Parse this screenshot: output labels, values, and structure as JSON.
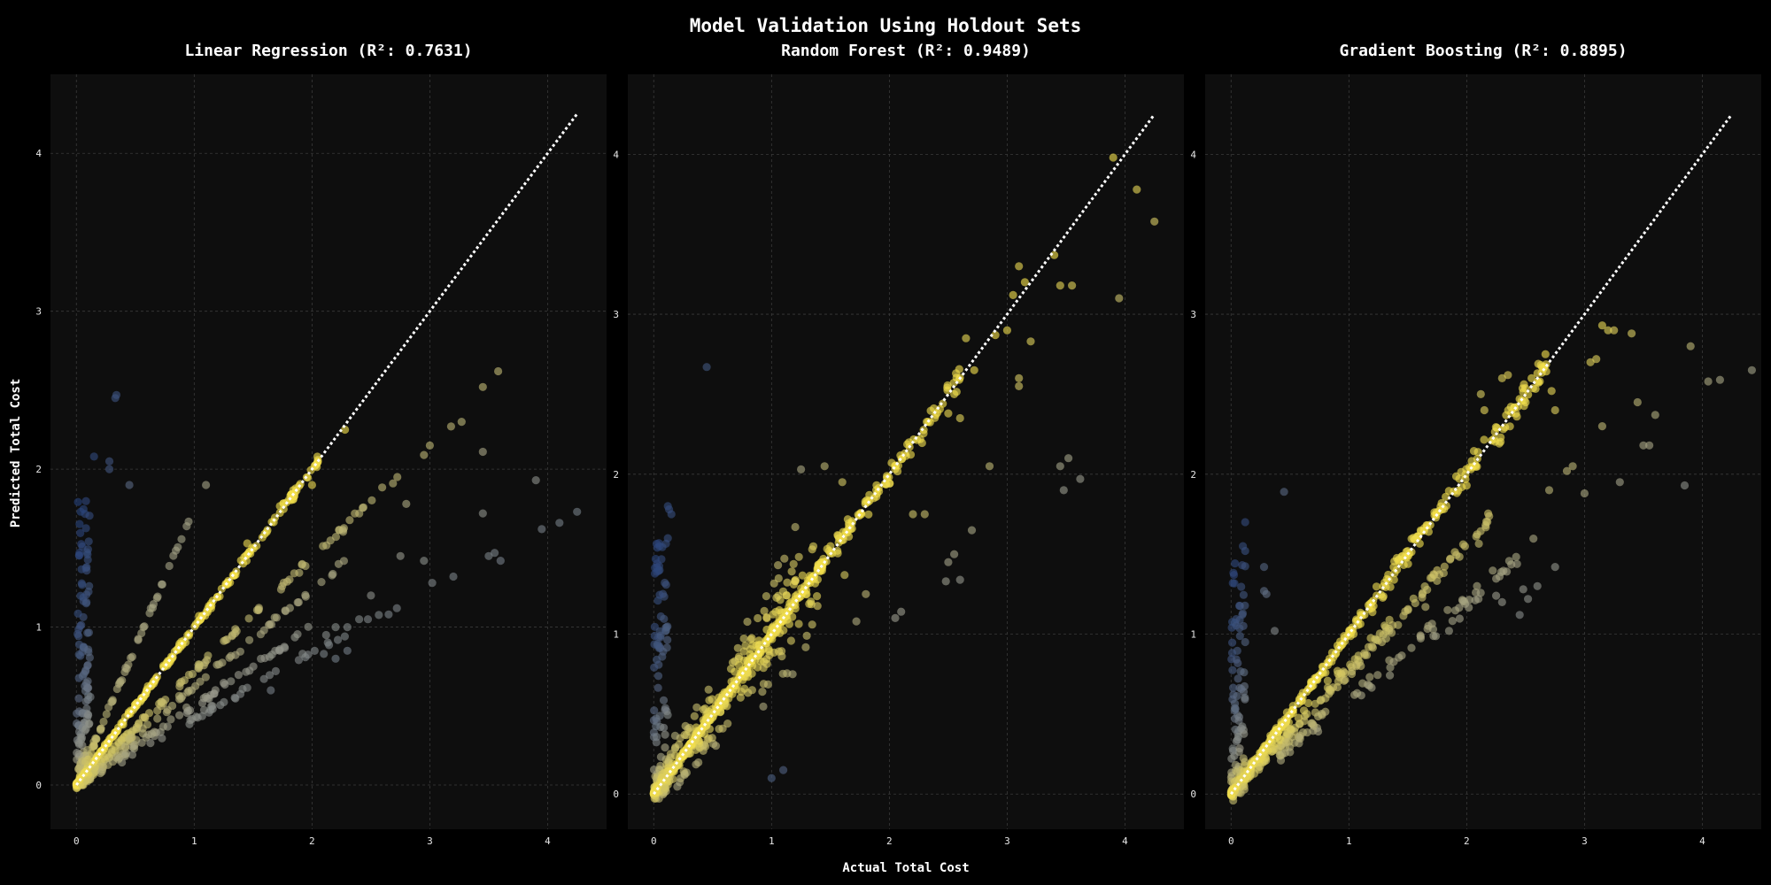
{
  "suptitle": "Model Validation Using Holdout Sets",
  "x_label": "Actual Total Cost",
  "y_label": "Predicted Total Cost",
  "colors": {
    "background": "#000000",
    "panel": "#0e0e0e",
    "high_accuracy": "#f5e14a",
    "mid": "#9a9a8a",
    "low_accuracy": "#1e3a78",
    "identity_line": "#ffffff"
  },
  "chart_data": [
    {
      "type": "scatter",
      "title": "Linear Regression (R²: 0.7631)",
      "model": "Linear Regression",
      "r2": 0.7631,
      "xlim": [
        -0.22,
        4.5
      ],
      "ylim": [
        -0.28,
        4.5
      ],
      "xticks": [
        0,
        1,
        2,
        3,
        4
      ],
      "yticks": [
        0,
        1,
        2,
        3,
        4
      ],
      "identity_line": [
        [
          0,
          0
        ],
        [
          4.25,
          4.25
        ]
      ],
      "clusters": [
        {
          "kind": "diagonal",
          "x_from": 0,
          "x_to": 2.05,
          "n": 240,
          "noise": 0.03
        },
        {
          "kind": "ray",
          "slope": 1.75,
          "x_from": 0.02,
          "x_to": 0.98,
          "n": 60,
          "noise": 0.02
        },
        {
          "kind": "ray",
          "slope": 0.72,
          "x_from": 0,
          "x_to": 2.75,
          "n": 110,
          "noise": 0.03
        },
        {
          "kind": "ray",
          "slope": 0.62,
          "x_from": 0,
          "x_to": 2.3,
          "n": 70,
          "noise": 0.03
        },
        {
          "kind": "ray",
          "slope": 0.5,
          "x_from": 0,
          "x_to": 2.0,
          "n": 70,
          "noise": 0.03
        },
        {
          "kind": "ray",
          "slope": 0.42,
          "x_from": 0,
          "x_to": 2.6,
          "n": 50,
          "noise": 0.03
        },
        {
          "kind": "vertical",
          "x_from": 0,
          "x_to": 0.12,
          "y_from": 0,
          "y_to": 1.85,
          "n": 140
        }
      ],
      "outliers": [
        [
          0.33,
          2.45
        ],
        [
          0.34,
          2.47
        ],
        [
          0.15,
          2.08
        ],
        [
          0.28,
          2.05
        ],
        [
          0.28,
          2.0
        ],
        [
          0.45,
          1.9
        ],
        [
          1.1,
          1.9
        ],
        [
          1.45,
          1.53
        ],
        [
          1.85,
          1.83
        ],
        [
          2.0,
          1.9
        ],
        [
          2.28,
          2.25
        ],
        [
          3.45,
          2.52
        ],
        [
          3.58,
          2.62
        ],
        [
          3.18,
          2.27
        ],
        [
          3.27,
          2.3
        ],
        [
          2.95,
          2.09
        ],
        [
          3.0,
          2.15
        ],
        [
          3.45,
          2.11
        ],
        [
          2.8,
          1.78
        ],
        [
          3.45,
          1.72
        ],
        [
          3.5,
          1.45
        ],
        [
          3.55,
          1.47
        ],
        [
          3.6,
          1.42
        ],
        [
          3.9,
          1.93
        ],
        [
          3.95,
          1.62
        ],
        [
          4.1,
          1.66
        ],
        [
          4.25,
          1.73
        ],
        [
          3.2,
          1.32
        ],
        [
          3.02,
          1.28
        ],
        [
          2.72,
          1.12
        ],
        [
          2.65,
          1.08
        ],
        [
          2.5,
          1.2
        ],
        [
          2.95,
          1.42
        ],
        [
          1.65,
          0.6
        ],
        [
          2.1,
          0.83
        ],
        [
          2.2,
          0.8
        ],
        [
          2.3,
          0.85
        ],
        [
          2.3,
          1.0
        ],
        [
          2.4,
          1.05
        ],
        [
          2.75,
          1.45
        ],
        [
          2.12,
          0.95
        ],
        [
          2.2,
          1.0
        ]
      ]
    },
    {
      "type": "scatter",
      "title": "Random Forest (R²: 0.9489)",
      "model": "Random Forest",
      "r2": 0.9489,
      "xlim": [
        -0.22,
        4.5
      ],
      "ylim": [
        -0.22,
        4.5
      ],
      "xticks": [
        0,
        1,
        2,
        3,
        4
      ],
      "yticks": [
        0,
        1,
        2,
        3,
        4
      ],
      "identity_line": [
        [
          0,
          0
        ],
        [
          4.25,
          4.25
        ]
      ],
      "clusters": [
        {
          "kind": "diagonal",
          "x_from": 0,
          "x_to": 2.6,
          "n": 380,
          "noise": 0.05
        },
        {
          "kind": "cloud",
          "x_from": 0,
          "x_to": 1.4,
          "n": 280,
          "spread": 0.28
        },
        {
          "kind": "vertical",
          "x_from": 0,
          "x_to": 0.12,
          "y_from": 0,
          "y_to": 1.6,
          "n": 90
        }
      ],
      "outliers": [
        [
          0.45,
          2.67
        ],
        [
          0.12,
          1.8
        ],
        [
          0.13,
          1.78
        ],
        [
          0.15,
          1.75
        ],
        [
          0.12,
          1.6
        ],
        [
          0.05,
          1.55
        ],
        [
          3.9,
          3.98
        ],
        [
          4.1,
          3.78
        ],
        [
          4.25,
          3.58
        ],
        [
          3.95,
          3.1
        ],
        [
          3.4,
          3.37
        ],
        [
          3.45,
          3.18
        ],
        [
          3.55,
          3.18
        ],
        [
          3.1,
          3.3
        ],
        [
          3.05,
          3.12
        ],
        [
          3.15,
          3.2
        ],
        [
          3.0,
          2.9
        ],
        [
          2.9,
          2.87
        ],
        [
          3.1,
          2.6
        ],
        [
          3.1,
          2.55
        ],
        [
          3.2,
          2.83
        ],
        [
          2.65,
          2.85
        ],
        [
          2.72,
          2.65
        ],
        [
          2.5,
          2.38
        ],
        [
          2.55,
          2.5
        ],
        [
          2.6,
          2.35
        ],
        [
          2.85,
          2.05
        ],
        [
          2.55,
          1.5
        ],
        [
          2.5,
          1.45
        ],
        [
          2.48,
          1.33
        ],
        [
          2.6,
          1.34
        ],
        [
          2.7,
          1.65
        ],
        [
          3.45,
          2.05
        ],
        [
          3.48,
          1.9
        ],
        [
          3.52,
          2.1
        ],
        [
          3.62,
          1.97
        ],
        [
          2.3,
          1.75
        ],
        [
          2.2,
          1.75
        ],
        [
          2.05,
          1.1
        ],
        [
          2.1,
          1.14
        ],
        [
          1.25,
          2.03
        ],
        [
          1.45,
          2.05
        ],
        [
          1.6,
          1.95
        ],
        [
          1.5,
          1.55
        ],
        [
          1.62,
          1.37
        ],
        [
          1.8,
          1.25
        ],
        [
          1.72,
          1.08
        ],
        [
          1.1,
          0.15
        ],
        [
          1.0,
          0.1
        ]
      ]
    },
    {
      "type": "scatter",
      "title": "Gradient Boosting (R²: 0.8895)",
      "model": "Gradient Boosting",
      "r2": 0.8895,
      "xlim": [
        -0.22,
        4.5
      ],
      "ylim": [
        -0.22,
        4.5
      ],
      "xticks": [
        0,
        1,
        2,
        3,
        4
      ],
      "yticks": [
        0,
        1,
        2,
        3,
        4
      ],
      "identity_line": [
        [
          0,
          0
        ],
        [
          4.25,
          4.25
        ]
      ],
      "clusters": [
        {
          "kind": "diagonal",
          "x_from": 0,
          "x_to": 2.7,
          "n": 330,
          "noise": 0.06
        },
        {
          "kind": "ray",
          "slope": 0.78,
          "x_from": 0,
          "x_to": 2.2,
          "n": 180,
          "noise": 0.07
        },
        {
          "kind": "ray",
          "slope": 0.6,
          "x_from": 0.4,
          "x_to": 2.6,
          "n": 80,
          "noise": 0.07
        },
        {
          "kind": "vertical",
          "x_from": 0,
          "x_to": 0.12,
          "y_from": 0,
          "y_to": 1.5,
          "n": 100
        }
      ],
      "outliers": [
        [
          0.45,
          1.89
        ],
        [
          0.12,
          1.7
        ],
        [
          0.1,
          1.55
        ],
        [
          0.12,
          1.52
        ],
        [
          0.28,
          1.42
        ],
        [
          0.37,
          1.02
        ],
        [
          0.28,
          1.27
        ],
        [
          0.3,
          1.25
        ],
        [
          3.9,
          2.8
        ],
        [
          4.05,
          2.58
        ],
        [
          4.15,
          2.59
        ],
        [
          4.42,
          2.65
        ],
        [
          3.45,
          2.45
        ],
        [
          3.6,
          2.37
        ],
        [
          3.5,
          2.18
        ],
        [
          3.55,
          2.18
        ],
        [
          3.85,
          1.93
        ],
        [
          3.3,
          1.95
        ],
        [
          3.15,
          2.3
        ],
        [
          3.4,
          2.88
        ],
        [
          3.25,
          2.9
        ],
        [
          3.15,
          2.93
        ],
        [
          3.2,
          2.9
        ],
        [
          3.1,
          2.72
        ],
        [
          3.05,
          2.7
        ],
        [
          2.72,
          2.52
        ],
        [
          2.75,
          2.4
        ],
        [
          2.6,
          2.63
        ],
        [
          2.62,
          2.58
        ],
        [
          2.55,
          2.6
        ],
        [
          2.5,
          2.45
        ],
        [
          2.3,
          2.6
        ],
        [
          2.35,
          2.62
        ],
        [
          2.12,
          2.5
        ],
        [
          2.15,
          2.4
        ],
        [
          2.75,
          1.42
        ],
        [
          2.6,
          1.3
        ],
        [
          2.52,
          1.22
        ],
        [
          2.48,
          1.28
        ],
        [
          2.45,
          1.12
        ],
        [
          2.25,
          1.24
        ],
        [
          2.3,
          1.2
        ],
        [
          2.1,
          1.22
        ],
        [
          1.65,
          1.17
        ],
        [
          1.85,
          1.02
        ],
        [
          2.85,
          2.02
        ],
        [
          2.9,
          2.05
        ],
        [
          3.0,
          1.88
        ],
        [
          2.7,
          1.9
        ]
      ]
    }
  ]
}
